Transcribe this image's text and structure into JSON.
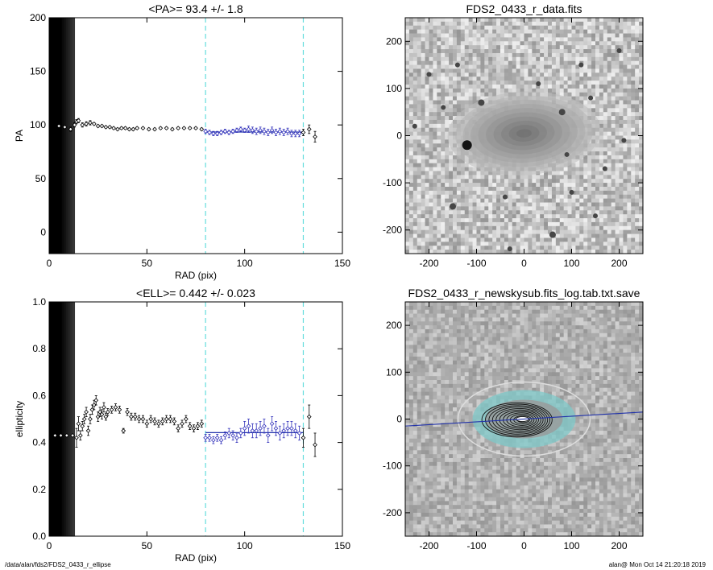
{
  "footer": {
    "left": "/data/alan/fds2/FDS2_0433_r_ellipse",
    "right": "alan@  Mon Oct 14 21:20:18 2019"
  },
  "colors": {
    "data_points": "#000000",
    "fit_points": "#3333bb",
    "mean_line": "#2233aa",
    "range_marker": "#66dddd",
    "ellipse_overlay": "#dddddd",
    "isophote_fill": "#7ec8c8"
  },
  "chart_data": [
    {
      "type": "scatter",
      "title": "<PA>=  93.4 +/-   1.8",
      "xlabel": "RAD (pix)",
      "ylabel": "PA",
      "xlim": [
        0,
        150
      ],
      "ylim": [
        -20,
        200
      ],
      "xticks": [
        0,
        50,
        100,
        150
      ],
      "yticks": [
        0,
        50,
        100,
        150,
        200
      ],
      "mean": 93.4,
      "mean_range": [
        80,
        130
      ],
      "range_markers": [
        80,
        130
      ],
      "masked_inner_radius": 13,
      "series": [
        {
          "x": [
            5,
            8,
            11,
            13,
            14,
            15,
            17,
            19,
            21,
            23,
            25,
            27,
            29,
            31,
            33,
            35,
            37,
            39,
            41,
            43,
            45,
            48,
            51,
            54,
            57,
            60,
            63,
            66,
            69,
            72,
            75,
            78
          ],
          "y": [
            99,
            98,
            96,
            100,
            103,
            104,
            100,
            101,
            102,
            101,
            99,
            99,
            98,
            98,
            97,
            96,
            97,
            97,
            96,
            96,
            97,
            97,
            96,
            96,
            97,
            97,
            96,
            97,
            97,
            97,
            97,
            96
          ],
          "err": [
            1,
            1,
            2,
            2,
            2,
            2,
            2,
            2,
            2,
            1,
            1,
            1,
            1,
            1,
            1,
            1,
            1,
            1,
            1,
            1,
            1,
            1,
            1,
            1,
            1,
            1,
            1,
            1,
            1,
            1,
            1,
            1
          ]
        },
        {
          "x": [
            80,
            82,
            84,
            86,
            88,
            90,
            92,
            94,
            96,
            98,
            100,
            102,
            104,
            106,
            108,
            110,
            112,
            114,
            116,
            118,
            120,
            122,
            124,
            126,
            128
          ],
          "y": [
            94,
            93,
            92,
            92,
            93,
            94,
            93,
            94,
            95,
            96,
            95,
            96,
            95,
            94,
            95,
            94,
            93,
            95,
            93,
            94,
            93,
            94,
            92,
            92,
            92
          ],
          "err": [
            2,
            2,
            2,
            2,
            2,
            2,
            2,
            2,
            2,
            2,
            2,
            3,
            3,
            3,
            3,
            3,
            3,
            3,
            3,
            3,
            3,
            3,
            3,
            3,
            3
          ]
        },
        {
          "x": [
            130,
            133,
            136
          ],
          "y": [
            93,
            96,
            89
          ],
          "err": [
            3,
            4,
            5
          ]
        }
      ]
    },
    {
      "type": "heatmap",
      "title": "FDS2_0433_r_data.fits",
      "xlim": [
        -250,
        250
      ],
      "ylim": [
        -250,
        250
      ],
      "xticks": [
        -200,
        -100,
        0,
        100,
        200
      ],
      "yticks": [
        -200,
        -100,
        0,
        100,
        200
      ]
    },
    {
      "type": "scatter",
      "title": "<ELL>= 0.442 +/-  0.023",
      "xlabel": "RAD (pix)",
      "ylabel": "ellipticity",
      "xlim": [
        0,
        150
      ],
      "ylim": [
        0,
        1
      ],
      "xticks": [
        0,
        50,
        100,
        150
      ],
      "yticks": [
        0.0,
        0.2,
        0.4,
        0.6,
        0.8,
        1.0
      ],
      "mean": 0.442,
      "mean_range": [
        80,
        130
      ],
      "range_markers": [
        80,
        130
      ],
      "masked_inner_radius": 13,
      "series": [
        {
          "x": [
            3,
            6,
            9,
            12,
            14,
            15,
            16,
            17,
            18,
            19,
            20,
            21,
            22,
            23,
            24,
            25,
            26,
            27,
            28,
            29,
            30,
            32,
            34,
            36,
            38,
            40,
            42,
            44,
            46,
            48,
            50,
            52,
            54,
            56,
            58,
            60,
            62,
            64,
            66,
            68,
            70,
            72,
            74,
            76,
            78
          ],
          "y": [
            0.43,
            0.43,
            0.43,
            0.43,
            0.42,
            0.48,
            0.43,
            0.47,
            0.5,
            0.53,
            0.45,
            0.5,
            0.54,
            0.56,
            0.58,
            0.51,
            0.53,
            0.52,
            0.55,
            0.51,
            0.53,
            0.54,
            0.55,
            0.54,
            0.45,
            0.53,
            0.51,
            0.51,
            0.5,
            0.5,
            0.48,
            0.5,
            0.49,
            0.48,
            0.49,
            0.5,
            0.5,
            0.49,
            0.46,
            0.48,
            0.5,
            0.47,
            0.46,
            0.47,
            0.48
          ],
          "err": [
            0.005,
            0.005,
            0.005,
            0.005,
            0.04,
            0.03,
            0.02,
            0.02,
            0.02,
            0.02,
            0.02,
            0.02,
            0.02,
            0.02,
            0.02,
            0.02,
            0.02,
            0.02,
            0.02,
            0.015,
            0.015,
            0.015,
            0.015,
            0.015,
            0.01,
            0.015,
            0.015,
            0.015,
            0.015,
            0.015,
            0.015,
            0.015,
            0.015,
            0.015,
            0.015,
            0.015,
            0.015,
            0.015,
            0.015,
            0.015,
            0.015,
            0.015,
            0.015,
            0.015,
            0.015
          ]
        },
        {
          "x": [
            80,
            82,
            84,
            86,
            88,
            90,
            92,
            94,
            96,
            98,
            100,
            102,
            104,
            106,
            108,
            110,
            112,
            114,
            116,
            118,
            120,
            122,
            124,
            126,
            128
          ],
          "y": [
            0.42,
            0.42,
            0.41,
            0.42,
            0.41,
            0.43,
            0.44,
            0.43,
            0.42,
            0.44,
            0.46,
            0.47,
            0.45,
            0.45,
            0.46,
            0.47,
            0.43,
            0.48,
            0.46,
            0.44,
            0.45,
            0.46,
            0.46,
            0.45,
            0.44
          ],
          "err": [
            0.015,
            0.015,
            0.015,
            0.015,
            0.015,
            0.015,
            0.02,
            0.02,
            0.02,
            0.02,
            0.03,
            0.03,
            0.03,
            0.03,
            0.03,
            0.03,
            0.03,
            0.03,
            0.03,
            0.03,
            0.03,
            0.03,
            0.03,
            0.03,
            0.03
          ]
        },
        {
          "x": [
            130,
            133,
            136
          ],
          "y": [
            0.42,
            0.51,
            0.39
          ],
          "err": [
            0.04,
            0.05,
            0.05
          ]
        }
      ]
    },
    {
      "type": "heatmap",
      "title": "FDS2_0433_r_newskysub.fits_log.tab.txt.save",
      "xlim": [
        -250,
        250
      ],
      "ylim": [
        -250,
        250
      ],
      "xticks": [
        -200,
        -100,
        0,
        100,
        200
      ],
      "yticks": [
        -200,
        -100,
        0,
        100,
        200
      ]
    }
  ]
}
